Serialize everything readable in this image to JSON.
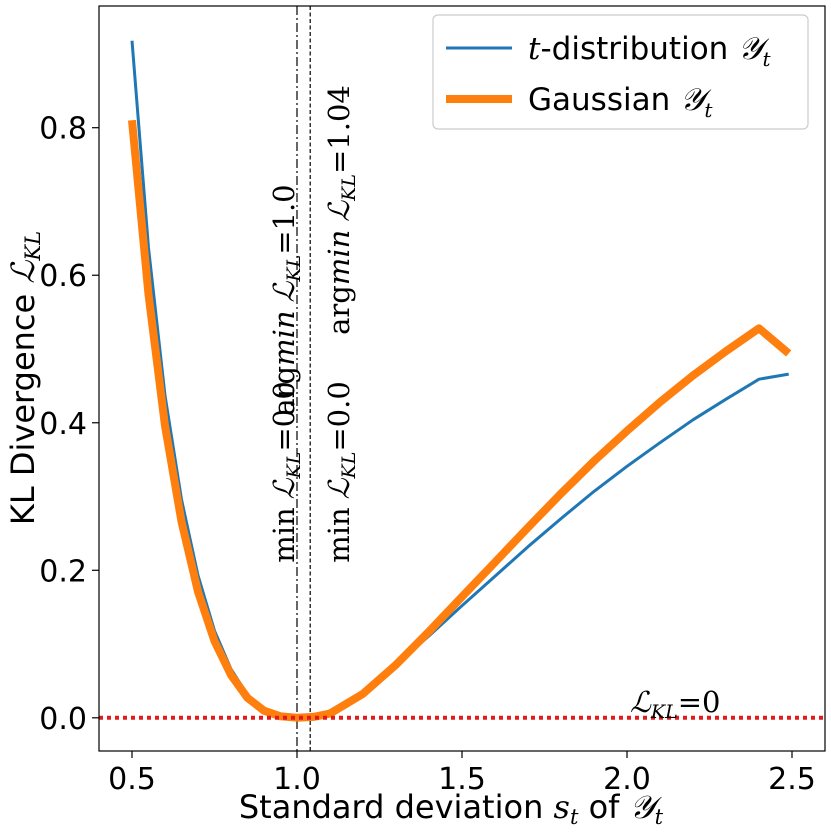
{
  "chart_data": {
    "type": "line",
    "xlabel": "Standard deviation s_t of 𝒴_t",
    "xlabel_parts": {
      "prefix": "Standard deviation ",
      "var": "s",
      "var_sub": "t",
      "mid": " of ",
      "dist": "𝒴",
      "dist_sub": "t"
    },
    "ylabel": "KL Divergence ℒ_KL",
    "ylabel_parts": {
      "prefix": "KL Divergence ",
      "sym": "ℒ",
      "sub": "KL"
    },
    "xlim": [
      0.4,
      2.6
    ],
    "ylim": [
      -0.045,
      0.965
    ],
    "xticks": [
      "0.5",
      "1.0",
      "1.5",
      "2.0",
      "2.5"
    ],
    "yticks": [
      "0.0",
      "0.2",
      "0.4",
      "0.6",
      "0.8"
    ],
    "series": [
      {
        "name": "t-distribution 𝒴_t",
        "legend_parts": {
          "var": "t",
          "text": "-distribution ",
          "dist": "𝒴",
          "sub": "t"
        },
        "color": "#1f77b4",
        "x": [
          0.5,
          0.55,
          0.6,
          0.65,
          0.7,
          0.75,
          0.8,
          0.85,
          0.9,
          0.95,
          1.0,
          1.05,
          1.1,
          1.2,
          1.3,
          1.4,
          1.5,
          1.6,
          1.7,
          1.8,
          1.9,
          2.0,
          2.1,
          2.2,
          2.3,
          2.4,
          2.49
        ],
        "y": [
          0.918,
          0.637,
          0.437,
          0.296,
          0.193,
          0.118,
          0.066,
          0.031,
          0.0105,
          0.0018,
          0.0,
          0.0024,
          0.0095,
          0.036,
          0.072,
          0.111,
          0.152,
          0.192,
          0.232,
          0.27,
          0.307,
          0.341,
          0.373,
          0.404,
          0.432,
          0.459,
          0.466
        ]
      },
      {
        "name": "Gaussian 𝒴_t",
        "legend_parts": {
          "text": "Gaussian ",
          "dist": "𝒴",
          "sub": "t"
        },
        "color": "#ff7f0e",
        "x": [
          0.5,
          0.55,
          0.6,
          0.65,
          0.7,
          0.75,
          0.8,
          0.85,
          0.9,
          0.95,
          1.0,
          1.05,
          1.1,
          1.2,
          1.3,
          1.4,
          1.5,
          1.6,
          1.7,
          1.8,
          1.9,
          2.0,
          2.1,
          2.2,
          2.3,
          2.4,
          2.49
        ],
        "y": [
          0.81,
          0.574,
          0.396,
          0.266,
          0.171,
          0.104,
          0.058,
          0.027,
          0.0097,
          0.0021,
          0.0001,
          0.0012,
          0.0057,
          0.0325,
          0.072,
          0.117,
          0.164,
          0.211,
          0.258,
          0.304,
          0.348,
          0.389,
          0.428,
          0.464,
          0.497,
          0.528,
          0.494
        ]
      }
    ],
    "vlines": [
      {
        "x": 1.0,
        "style": "dashdot",
        "text_top": "argmin ℒ_KL = 1.0",
        "top_parts": {
          "op": "arg",
          "opi": "min",
          "sym": "ℒ",
          "sub": "KL",
          "rhs": "=1.0"
        },
        "text_bottom": "min ℒ_KL = 0.0",
        "bottom_parts": {
          "op": "min",
          "sym": "ℒ",
          "sub": "KL",
          "rhs": "=0.0"
        }
      },
      {
        "x": 1.04,
        "style": "dashed",
        "text_top": "argmin ℒ_KL = 1.04",
        "top_parts": {
          "op": "arg",
          "opi": "min",
          "sym": "ℒ",
          "sub": "KL",
          "rhs": "=1.04"
        },
        "text_bottom": "min ℒ_KL = 0.0",
        "bottom_parts": {
          "op": "min",
          "sym": "ℒ",
          "sub": "KL",
          "rhs": "=0.0"
        }
      }
    ],
    "hline": {
      "y": 0.0,
      "color": "#e31a1c",
      "style": "dotted",
      "label": "ℒ_KL = 0",
      "label_parts": {
        "sym": "ℒ",
        "sub": "KL",
        "rhs": "=0"
      }
    },
    "legend": "top-right"
  }
}
